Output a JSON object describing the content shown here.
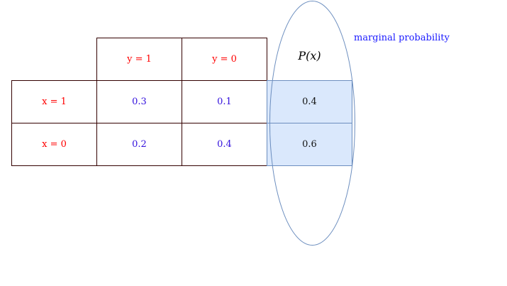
{
  "table": {
    "column_headers": [
      "y = 1",
      "y = 0"
    ],
    "rows": [
      {
        "label": "x = 1",
        "values": [
          "0.3",
          "0.1"
        ],
        "marginal": "0.4"
      },
      {
        "label": "x = 0",
        "values": [
          "0.2",
          "0.4"
        ],
        "marginal": "0.6"
      }
    ],
    "marginal_header": "P(x)"
  },
  "annotation": "marginal probability",
  "colors": {
    "label": "#ff0000",
    "value": "#3311dd",
    "marginal_fill": "#dae8fc",
    "marginal_stroke": "#6c8ebf",
    "border": "#330000",
    "annotation": "#1a1aff"
  }
}
